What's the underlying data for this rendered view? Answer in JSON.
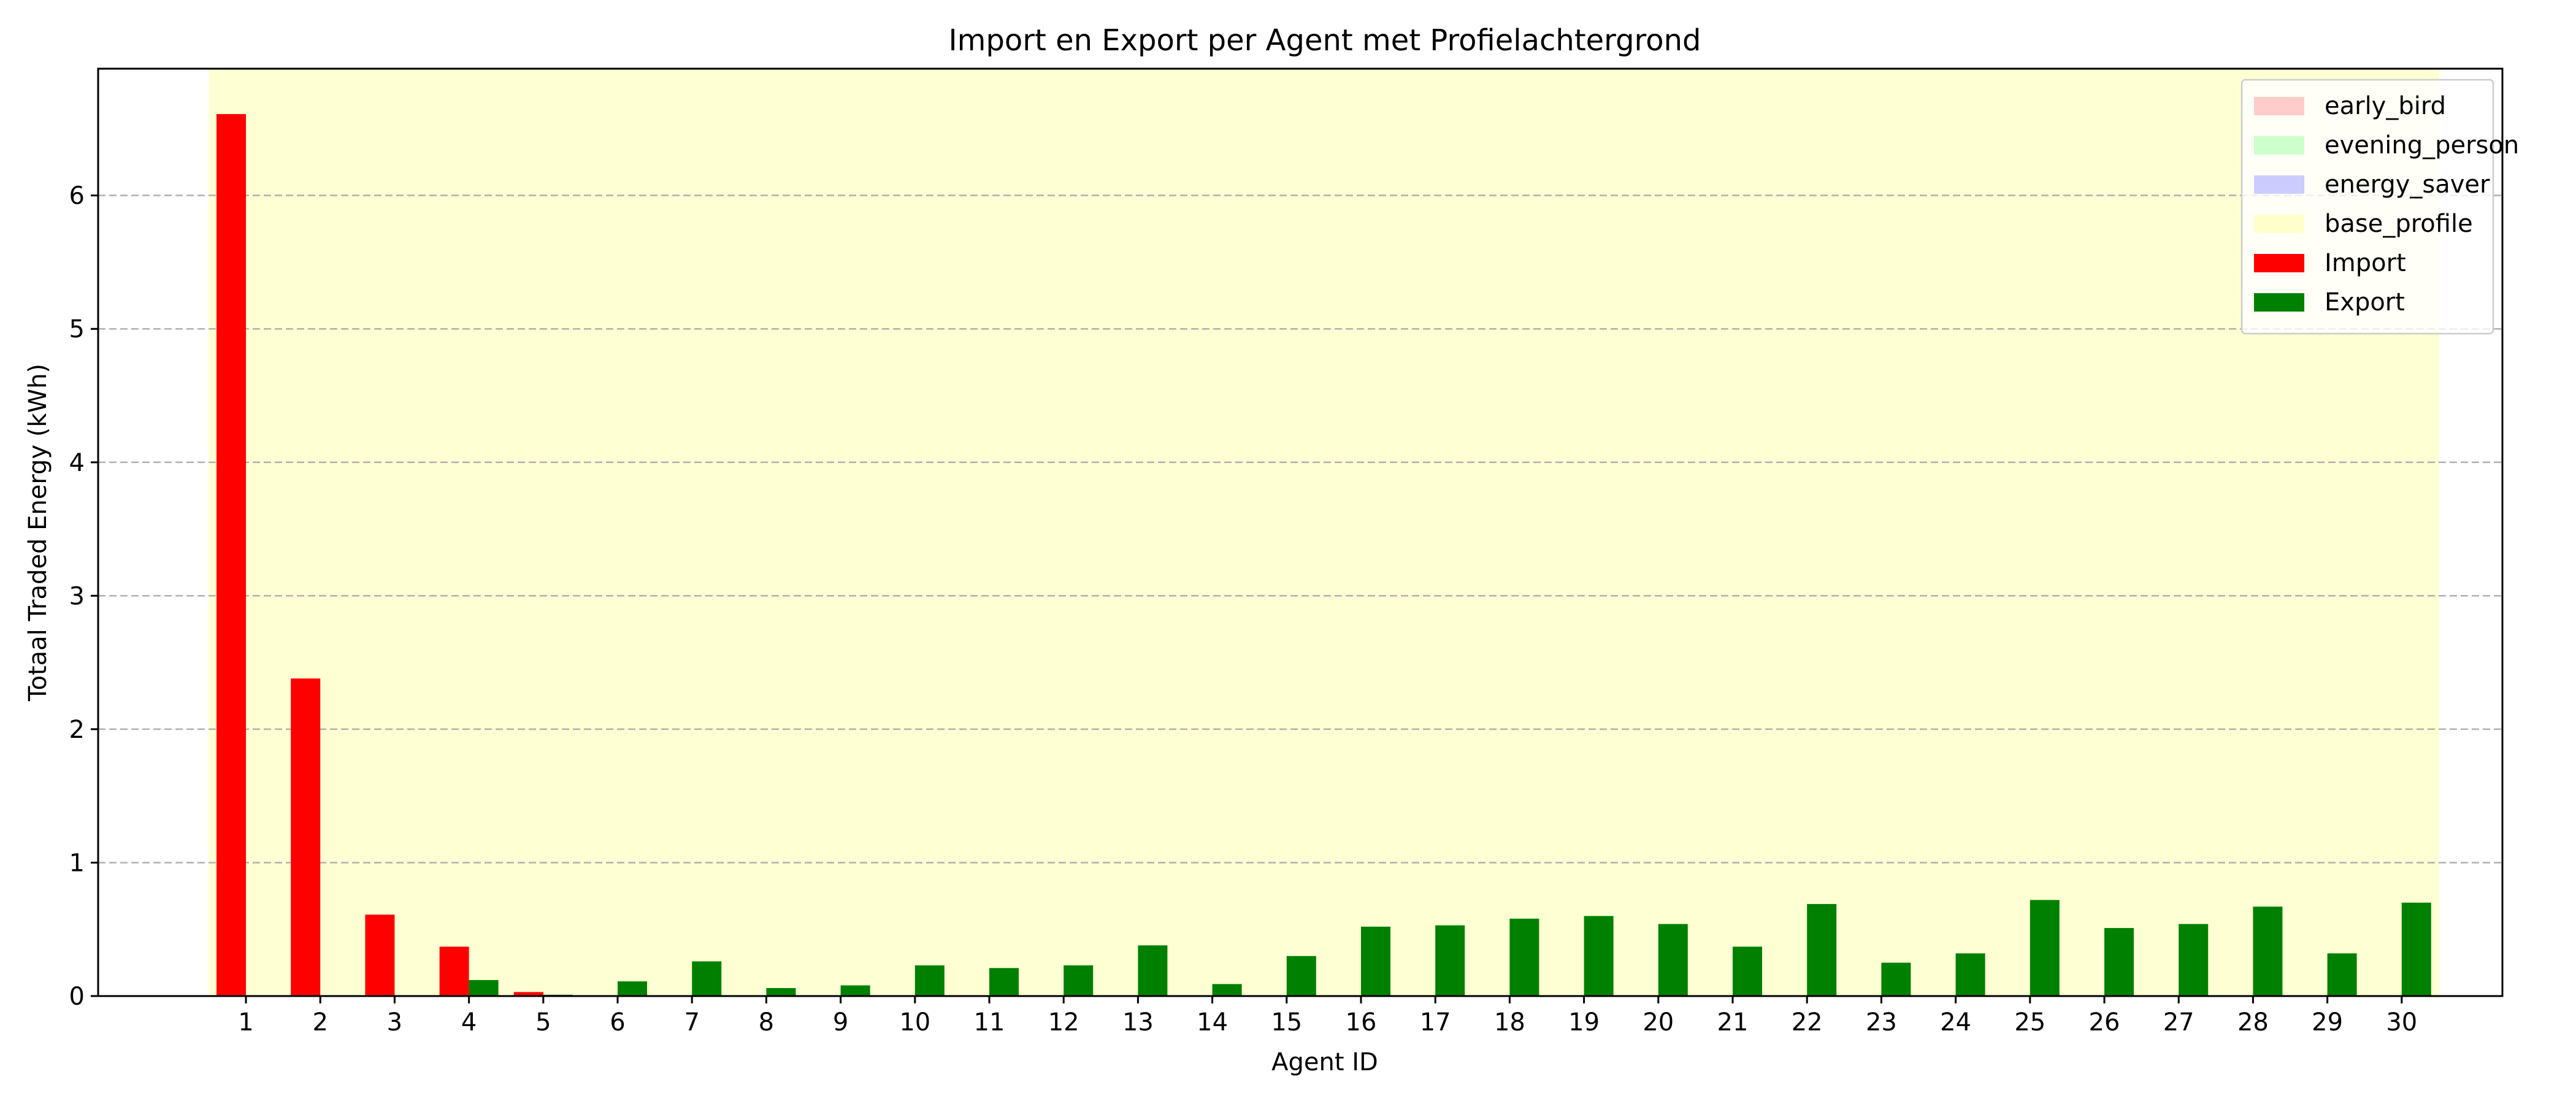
{
  "chart_data": {
    "type": "bar",
    "title": "Import en Export per Agent met Profielachtergrond",
    "xlabel": "Agent ID",
    "ylabel": "Totaal Traded Energy (kWh)",
    "ylim": [
      0,
      6.95
    ],
    "yticks": [
      0,
      1,
      2,
      3,
      4,
      5,
      6
    ],
    "grid": "y-dashed",
    "legend_position": "top-right",
    "categories": [
      "1",
      "2",
      "3",
      "4",
      "5",
      "6",
      "7",
      "8",
      "9",
      "10",
      "11",
      "12",
      "13",
      "14",
      "15",
      "16",
      "17",
      "18",
      "19",
      "20",
      "21",
      "22",
      "23",
      "24",
      "25",
      "26",
      "27",
      "28",
      "29",
      "30"
    ],
    "series": [
      {
        "name": "Import",
        "color": "#ff0000",
        "values": [
          6.61,
          2.38,
          0.61,
          0.37,
          0.03,
          0,
          0,
          0,
          0,
          0,
          0,
          0,
          0,
          0,
          0,
          0,
          0,
          0,
          0,
          0,
          0,
          0,
          0,
          0,
          0,
          0,
          0,
          0,
          0,
          0
        ]
      },
      {
        "name": "Export",
        "color": "#008000",
        "values": [
          0,
          0,
          0,
          0.12,
          0.01,
          0.11,
          0.26,
          0.06,
          0.08,
          0.23,
          0.21,
          0.23,
          0.38,
          0.09,
          0.3,
          0.52,
          0.53,
          0.58,
          0.6,
          0.54,
          0.37,
          0.69,
          0.25,
          0.32,
          0.72,
          0.51,
          0.54,
          0.67,
          0.32,
          0.7
        ]
      }
    ],
    "background_profiles": [
      {
        "name": "early_bird",
        "color": "#ffcccc"
      },
      {
        "name": "evening_person",
        "color": "#ccffcc"
      },
      {
        "name": "energy_saver",
        "color": "#ccccff"
      },
      {
        "name": "base_profile",
        "color": "#ffffcc"
      }
    ],
    "agent_profiles": [
      "base_profile",
      "base_profile",
      "base_profile",
      "base_profile",
      "base_profile",
      "base_profile",
      "base_profile",
      "base_profile",
      "base_profile",
      "base_profile",
      "base_profile",
      "base_profile",
      "base_profile",
      "base_profile",
      "base_profile",
      "base_profile",
      "base_profile",
      "base_profile",
      "base_profile",
      "base_profile",
      "base_profile",
      "base_profile",
      "base_profile",
      "base_profile",
      "base_profile",
      "base_profile",
      "base_profile",
      "base_profile",
      "base_profile",
      "base_profile"
    ]
  }
}
